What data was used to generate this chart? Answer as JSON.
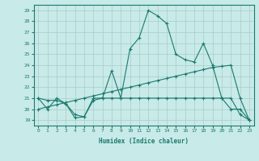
{
  "line1_x": [
    0,
    1,
    2,
    3,
    4,
    5,
    6,
    7,
    8,
    9,
    10,
    11,
    12,
    13,
    14,
    15,
    16,
    17,
    18,
    19,
    20,
    21,
    22,
    23
  ],
  "line1_y": [
    21.0,
    20.0,
    21.0,
    20.5,
    19.2,
    19.3,
    21.0,
    21.0,
    23.5,
    21.0,
    25.5,
    26.5,
    29.0,
    28.5,
    27.8,
    25.0,
    24.5,
    24.3,
    26.0,
    24.0,
    21.0,
    20.0,
    20.0,
    19.0
  ],
  "line2_x": [
    0,
    1,
    2,
    3,
    4,
    5,
    6,
    7,
    8,
    9,
    10,
    11,
    12,
    13,
    14,
    15,
    16,
    17,
    18,
    19,
    20,
    21,
    22,
    23
  ],
  "line2_y": [
    20.0,
    20.2,
    20.4,
    20.6,
    20.8,
    21.0,
    21.2,
    21.4,
    21.6,
    21.8,
    22.0,
    22.2,
    22.4,
    22.6,
    22.8,
    23.0,
    23.2,
    23.4,
    23.6,
    23.8,
    23.9,
    24.0,
    21.0,
    19.0
  ],
  "line3_x": [
    0,
    1,
    2,
    3,
    4,
    5,
    6,
    7,
    8,
    9,
    10,
    11,
    12,
    13,
    14,
    15,
    16,
    17,
    18,
    19,
    20,
    21,
    22,
    23
  ],
  "line3_y": [
    21.0,
    20.8,
    20.8,
    20.5,
    19.5,
    19.3,
    20.8,
    21.0,
    21.0,
    21.0,
    21.0,
    21.0,
    21.0,
    21.0,
    21.0,
    21.0,
    21.0,
    21.0,
    21.0,
    21.0,
    21.0,
    21.0,
    19.5,
    19.0
  ],
  "color": "#1a7a6e",
  "bg_color": "#c8eae8",
  "grid_color": "#a8ccc8",
  "xlabel": "Humidex (Indice chaleur)",
  "xlim": [
    -0.5,
    23.5
  ],
  "ylim": [
    18.5,
    29.5
  ],
  "yticks": [
    19,
    20,
    21,
    22,
    23,
    24,
    25,
    26,
    27,
    28,
    29
  ],
  "xticks": [
    0,
    1,
    2,
    3,
    4,
    5,
    6,
    7,
    8,
    9,
    10,
    11,
    12,
    13,
    14,
    15,
    16,
    17,
    18,
    19,
    20,
    21,
    22,
    23
  ]
}
